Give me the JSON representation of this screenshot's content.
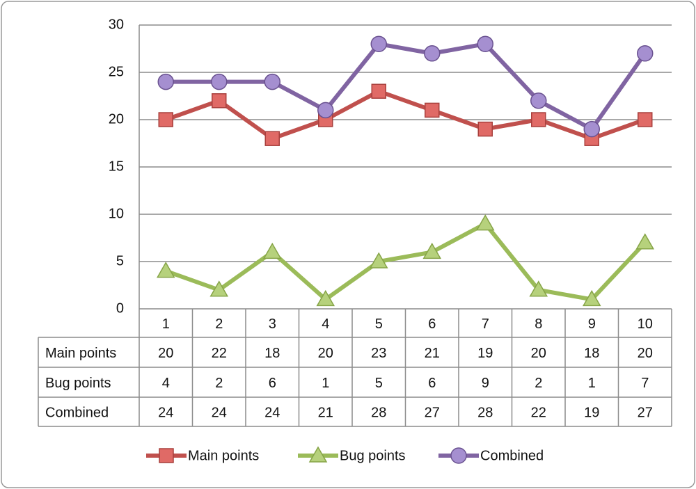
{
  "chart_data": {
    "type": "line",
    "categories": [
      "1",
      "2",
      "3",
      "4",
      "5",
      "6",
      "7",
      "8",
      "9",
      "10"
    ],
    "series": [
      {
        "name": "Main points",
        "color": "#c0504d",
        "marker": "square",
        "values": [
          20,
          22,
          18,
          20,
          23,
          21,
          19,
          20,
          18,
          20
        ]
      },
      {
        "name": "Bug points",
        "color": "#9bbb59",
        "marker": "triangle",
        "values": [
          4,
          2,
          6,
          1,
          5,
          6,
          9,
          2,
          1,
          7
        ]
      },
      {
        "name": "Combined",
        "color": "#8064a2",
        "marker": "circle",
        "values": [
          24,
          24,
          24,
          21,
          28,
          27,
          28,
          22,
          19,
          27
        ]
      }
    ],
    "ylim": [
      0,
      30
    ],
    "yticks": [
      0,
      5,
      10,
      15,
      20,
      25,
      30
    ],
    "grid": true,
    "legend": "bottom",
    "data_table": true
  }
}
